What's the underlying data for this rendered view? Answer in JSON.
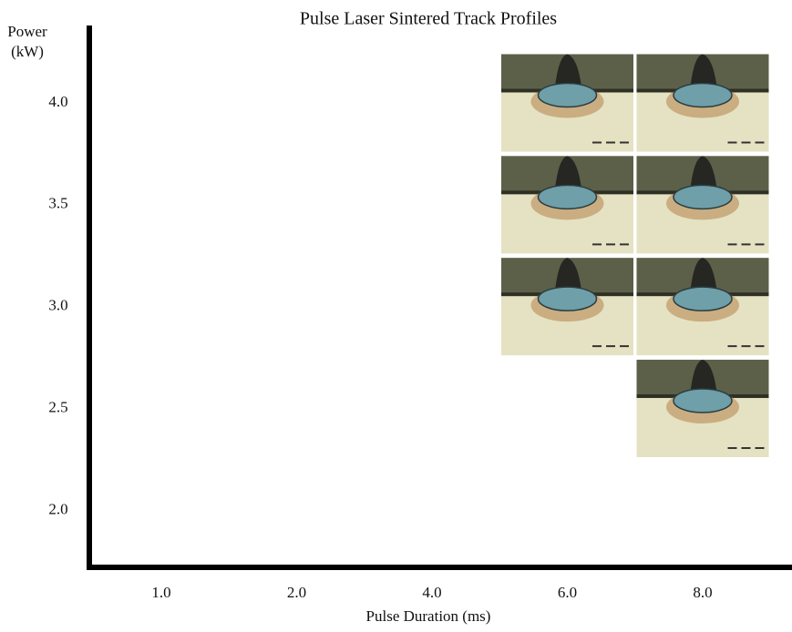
{
  "chart_data": {
    "type": "image-grid",
    "title": "Pulse Laser Sintered Track Profiles",
    "xlabel": "Pulse Duration (ms)",
    "ylabel": [
      "Power",
      "(kW)"
    ],
    "categories": [
      "1.0",
      "2.0",
      "4.0",
      "6.0",
      "8.0"
    ],
    "x": [
      "6.0",
      "8.0",
      "6.0",
      "8.0",
      "6.0",
      "8.0",
      "8.0"
    ],
    "y": [
      4.0,
      4.0,
      3.5,
      3.5,
      3.0,
      3.0,
      2.5
    ],
    "ylim": [
      1.72,
      4.38
    ],
    "yticks": [
      {
        "value": 2,
        "label": "2.0"
      },
      {
        "value": 2.5,
        "label": "2.5"
      },
      {
        "value": 3,
        "label": "3.0"
      },
      {
        "value": 3.5,
        "label": "3.5"
      },
      {
        "value": 4,
        "label": "4.0"
      }
    ]
  }
}
